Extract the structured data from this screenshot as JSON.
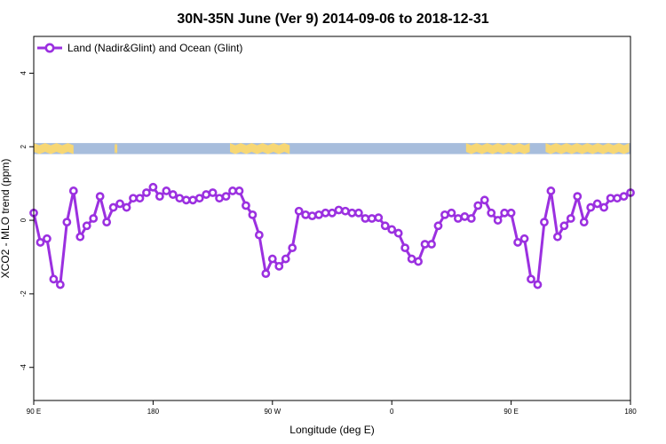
{
  "chart_data": {
    "type": "line",
    "title": "30N-35N June (Ver 9)   2014-09-06 to 2018-12-31",
    "xlabel": "Longitude (deg E)",
    "ylabel": "XCO2 - MLO trend (ppm)",
    "xlim": [
      90,
      540
    ],
    "ylim": [
      -4.9,
      5.0
    ],
    "x_ticks": [
      90,
      180,
      270,
      360,
      450,
      540
    ],
    "x_tick_labels": [
      "90 E",
      "180",
      "90 W",
      "0",
      "90 E",
      "180"
    ],
    "y_ticks": [
      -4,
      -2,
      0,
      2,
      4
    ],
    "y_tick_labels": [
      "-4",
      "-2",
      "0",
      "2",
      "4"
    ],
    "legend": {
      "position": "top-left"
    },
    "series": [
      {
        "name": "Land (Nadir&Glint) and Ocean (Glint)",
        "color": "#9b30e0",
        "marker": "open-circle",
        "x": [
          90,
          95,
          100,
          105,
          110,
          115,
          120,
          125,
          130,
          135,
          140,
          145,
          150,
          155,
          160,
          165,
          170,
          175,
          180,
          185,
          190,
          195,
          200,
          205,
          210,
          215,
          220,
          225,
          230,
          235,
          240,
          245,
          250,
          255,
          260,
          265,
          270,
          275,
          280,
          285,
          290,
          295,
          300,
          305,
          310,
          315,
          320,
          325,
          330,
          335,
          340,
          345,
          350,
          355,
          360,
          365,
          370,
          375,
          380,
          385,
          390,
          395,
          400,
          405,
          410,
          415,
          420,
          425,
          430,
          435,
          440,
          445,
          450,
          455,
          460,
          465,
          470,
          475,
          480,
          485,
          490,
          495,
          500,
          505,
          510,
          515,
          520,
          525,
          530,
          535,
          540
        ],
        "y": [
          0.2,
          -0.6,
          -0.5,
          -1.6,
          -1.75,
          -0.05,
          0.8,
          -0.45,
          -0.15,
          0.05,
          0.65,
          -0.05,
          0.35,
          0.45,
          0.35,
          0.6,
          0.6,
          0.75,
          0.9,
          0.65,
          0.8,
          0.7,
          0.6,
          0.55,
          0.55,
          0.6,
          0.7,
          0.75,
          0.6,
          0.65,
          0.8,
          0.8,
          0.4,
          0.15,
          -0.4,
          -1.45,
          -1.05,
          -1.25,
          -1.05,
          -0.75,
          0.25,
          0.15,
          0.12,
          0.15,
          0.2,
          0.2,
          0.28,
          0.25,
          0.2,
          0.2,
          0.05,
          0.05,
          0.07,
          -0.15,
          -0.25,
          -0.35,
          -0.75,
          -1.05,
          -1.12,
          -0.65,
          -0.65,
          -0.15,
          0.15,
          0.2,
          0.05,
          0.1,
          0.05,
          0.4,
          0.55,
          0.2,
          0.0,
          0.2,
          0.2,
          -0.6,
          -0.5,
          -1.6,
          -1.75,
          -0.05,
          0.8,
          -0.45,
          -0.15,
          0.05,
          0.65,
          -0.05,
          0.35,
          0.45,
          0.35,
          0.6,
          0.6,
          0.65,
          0.75
        ]
      }
    ],
    "surface_strip": {
      "y_range": [
        1.8,
        2.1
      ],
      "ocean_color": "#a7bddc",
      "land_color": "#f7d774",
      "land_segments": [
        [
          90,
          120
        ],
        [
          152,
          153
        ],
        [
          151,
          152
        ],
        [
          238,
          283
        ],
        [
          416,
          464
        ],
        [
          476,
          539
        ]
      ]
    }
  }
}
